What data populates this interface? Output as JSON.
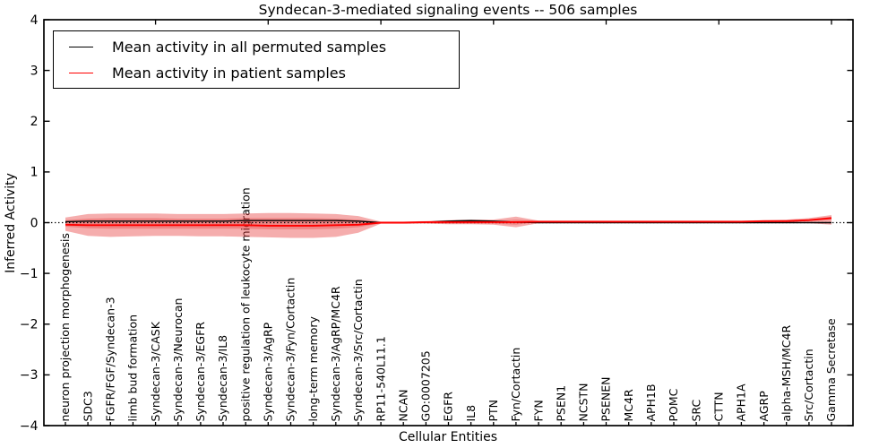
{
  "title": "Syndecan-3-mediated signaling events -- 506 samples",
  "legend": {
    "items": [
      {
        "label": "Mean activity in all permuted samples",
        "color": "#000000"
      },
      {
        "label": "Mean activity in patient samples",
        "color": "#ff0000"
      }
    ]
  },
  "chart_data": {
    "type": "line",
    "title": "Syndecan-3-mediated signaling events -- 506 samples",
    "xlabel": "Cellular Entities",
    "ylabel": "Inferred Activity",
    "ylim": [
      -4,
      4
    ],
    "yticks": [
      -4,
      -3,
      -2,
      -1,
      0,
      1,
      2,
      3,
      4
    ],
    "grid": false,
    "zero_line": "dotted",
    "legend_position": "upper left",
    "top_tick_indices": [
      4,
      9,
      14,
      19,
      24,
      29,
      34
    ],
    "categories": [
      "neuron projection morphogenesis",
      "SDC3",
      "FGFR/FGF/Syndecan-3",
      "limb bud formation",
      "Syndecan-3/CASK",
      "Syndecan-3/Neurocan",
      "Syndecan-3/EGFR",
      "Syndecan-3/IL8",
      "positive regulation of leukocyte migration",
      "Syndecan-3/AgRP",
      "Syndecan-3/Fyn/Cortactin",
      "long-term memory",
      "Syndecan-3/AgRP/MC4R",
      "Syndecan-3/Src/Cortactin",
      "RP11-540L11.1",
      "NCAN",
      "GO:0007205",
      "EGFR",
      "IL8",
      "PTN",
      "Fyn/Cortactin",
      "FYN",
      "PSEN1",
      "NCSTN",
      "PSENEN",
      "MC4R",
      "APH1B",
      "POMC",
      "SRC",
      "CTTN",
      "APH1A",
      "AGRP",
      "alpha-MSH/MC4R",
      "Src/Cortactin",
      "Gamma Secretase"
    ],
    "series": [
      {
        "name": "Mean activity in all permuted samples",
        "color": "#000000",
        "values": [
          0.02,
          0.03,
          0.03,
          0.03,
          0.03,
          0.03,
          0.03,
          0.03,
          0.04,
          0.04,
          0.04,
          0.04,
          0.04,
          0.03,
          0.0,
          0.0,
          0.01,
          0.03,
          0.04,
          0.03,
          0.01,
          0.0,
          0.0,
          0.0,
          0.0,
          0.0,
          0.0,
          0.0,
          0.0,
          0.0,
          0.0,
          0.0,
          0.0,
          0.0,
          0.0
        ]
      },
      {
        "name": "Mean activity in patient samples",
        "color": "#ff0000",
        "values": [
          -0.04,
          -0.05,
          -0.05,
          -0.05,
          -0.05,
          -0.05,
          -0.05,
          -0.05,
          -0.05,
          -0.06,
          -0.06,
          -0.06,
          -0.05,
          -0.04,
          0.0,
          0.0,
          0.01,
          0.01,
          0.01,
          0.01,
          0.01,
          0.02,
          0.02,
          0.02,
          0.02,
          0.02,
          0.02,
          0.02,
          0.02,
          0.02,
          0.02,
          0.03,
          0.03,
          0.05,
          0.09
        ]
      }
    ],
    "bands": [
      {
        "name": "patient-band-outer",
        "color": "rgba(232,60,60,0.42)",
        "top": [
          0.1,
          0.17,
          0.18,
          0.18,
          0.18,
          0.17,
          0.17,
          0.17,
          0.18,
          0.19,
          0.19,
          0.18,
          0.17,
          0.13,
          0.02,
          0.02,
          0.03,
          0.05,
          0.06,
          0.06,
          0.12,
          0.04,
          0.04,
          0.04,
          0.04,
          0.04,
          0.04,
          0.04,
          0.04,
          0.04,
          0.04,
          0.05,
          0.06,
          0.09,
          0.15
        ],
        "bottom": [
          -0.16,
          -0.26,
          -0.28,
          -0.27,
          -0.26,
          -0.26,
          -0.27,
          -0.27,
          -0.28,
          -0.29,
          -0.3,
          -0.3,
          -0.28,
          -0.2,
          -0.02,
          -0.02,
          -0.02,
          -0.03,
          -0.03,
          -0.04,
          -0.09,
          -0.01,
          0.0,
          0.0,
          0.0,
          0.0,
          0.0,
          0.0,
          0.0,
          0.0,
          0.0,
          0.0,
          0.0,
          -0.01,
          -0.04
        ]
      },
      {
        "name": "patient-band-inner",
        "color": "rgba(232,60,60,0.35)",
        "top": [
          0.05,
          0.08,
          0.09,
          0.09,
          0.09,
          0.08,
          0.08,
          0.08,
          0.09,
          0.09,
          0.09,
          0.09,
          0.08,
          0.06,
          0.01,
          0.01,
          0.02,
          0.03,
          0.03,
          0.03,
          0.06,
          0.03,
          0.03,
          0.03,
          0.03,
          0.03,
          0.03,
          0.03,
          0.03,
          0.03,
          0.03,
          0.04,
          0.04,
          0.06,
          0.12
        ],
        "bottom": [
          -0.08,
          -0.11,
          -0.12,
          -0.12,
          -0.12,
          -0.12,
          -0.12,
          -0.12,
          -0.12,
          -0.13,
          -0.13,
          -0.13,
          -0.12,
          -0.09,
          -0.01,
          -0.01,
          -0.01,
          -0.02,
          -0.02,
          -0.02,
          -0.04,
          0.01,
          0.01,
          0.01,
          0.01,
          0.01,
          0.01,
          0.01,
          0.01,
          0.01,
          0.01,
          0.01,
          0.02,
          0.03,
          0.06
        ]
      }
    ]
  }
}
